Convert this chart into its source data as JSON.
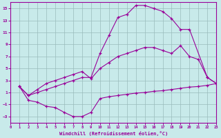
{
  "title": "Windchill (Refroidissement éolien,°C)",
  "bg_color": "#c8eaea",
  "line_color": "#990099",
  "grid_color": "#99bbbb",
  "xlim": [
    0,
    23
  ],
  "ylim": [
    -4,
    16
  ],
  "yticks": [
    -3,
    -1,
    1,
    3,
    5,
    7,
    9,
    11,
    13,
    15
  ],
  "xticks": [
    0,
    1,
    2,
    3,
    4,
    5,
    6,
    7,
    8,
    9,
    10,
    11,
    12,
    13,
    14,
    15,
    16,
    17,
    18,
    19,
    20,
    21,
    22,
    23
  ],
  "curve1_x": [
    1,
    2,
    3,
    4,
    5,
    6,
    7,
    8,
    9,
    10,
    11,
    12,
    13,
    14,
    15,
    16,
    17,
    18,
    19,
    20,
    21,
    22,
    23
  ],
  "curve1_y": [
    2.0,
    -0.3,
    -0.6,
    -1.3,
    -1.5,
    -2.3,
    -3.0,
    -3.0,
    -2.3,
    0.0,
    0.3,
    0.5,
    0.7,
    0.9,
    1.0,
    1.2,
    1.3,
    1.5,
    1.7,
    1.9,
    2.0,
    2.2,
    2.5
  ],
  "curve2_x": [
    1,
    2,
    3,
    4,
    5,
    6,
    7,
    8,
    9,
    10,
    11,
    12,
    13,
    14,
    15,
    16,
    17,
    18,
    19,
    20,
    21,
    22,
    23
  ],
  "curve2_y": [
    2.0,
    0.5,
    1.5,
    2.5,
    3.0,
    3.5,
    4.0,
    4.5,
    3.3,
    5.0,
    6.0,
    7.0,
    7.5,
    8.0,
    8.5,
    8.5,
    8.0,
    7.5,
    8.8,
    7.0,
    6.5,
    3.5,
    2.5
  ],
  "curve3_x": [
    1,
    2,
    3,
    4,
    5,
    6,
    7,
    8,
    9,
    10,
    11,
    12,
    13,
    14,
    15,
    16,
    17,
    18,
    19,
    20,
    22,
    23
  ],
  "curve3_y": [
    2.0,
    0.5,
    1.0,
    1.5,
    2.0,
    2.5,
    3.0,
    3.5,
    3.5,
    7.5,
    10.5,
    13.5,
    14.0,
    15.5,
    15.5,
    15.0,
    14.5,
    13.3,
    11.5,
    11.5,
    3.5,
    2.5
  ]
}
